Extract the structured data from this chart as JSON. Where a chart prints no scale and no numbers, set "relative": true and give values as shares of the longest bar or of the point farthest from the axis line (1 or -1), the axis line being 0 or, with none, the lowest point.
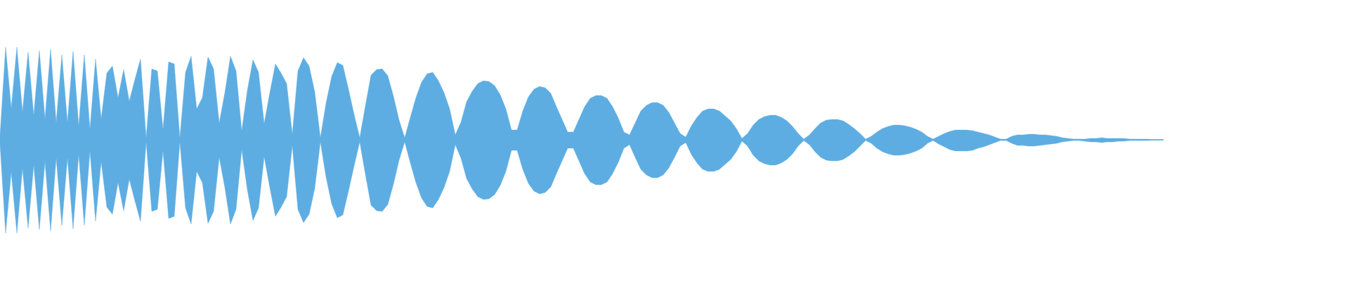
{
  "chart_data": {
    "type": "area",
    "relative": true,
    "categories": [
      null,
      null,
      null,
      null,
      null,
      null,
      null,
      null,
      null,
      null,
      null,
      null,
      null,
      null,
      null,
      null,
      null,
      null,
      null,
      null,
      null,
      null,
      null,
      null,
      null,
      null,
      null,
      null,
      null,
      null,
      null,
      null,
      null,
      null,
      null,
      null,
      null,
      null,
      null,
      null,
      null,
      null,
      null,
      null,
      null,
      null,
      null,
      null,
      null,
      null,
      null,
      null,
      null,
      null,
      null,
      null,
      null,
      null,
      null,
      null,
      null,
      null,
      null,
      null,
      null,
      null,
      null,
      null,
      null,
      null,
      null,
      null,
      null,
      null,
      null,
      null,
      null,
      null,
      null,
      null,
      null,
      null,
      null,
      null,
      null,
      null,
      null,
      null,
      null,
      null,
      null,
      null,
      null,
      null,
      null,
      null,
      null,
      null,
      null,
      null,
      null,
      null,
      null,
      null,
      null,
      null,
      null,
      null,
      null,
      null,
      null,
      null,
      null,
      null,
      null,
      null,
      null,
      null,
      null,
      null,
      null,
      null,
      null,
      null,
      null,
      null,
      null,
      null,
      null,
      null,
      null,
      null,
      null,
      null,
      null,
      null,
      null,
      null,
      null,
      null,
      null,
      null,
      null,
      null,
      null,
      null,
      null,
      null,
      null,
      null,
      null,
      null,
      null,
      null,
      null,
      null,
      null,
      null,
      null,
      null,
      null,
      null,
      null,
      null,
      null,
      null,
      null,
      null,
      null,
      null,
      null,
      null,
      null,
      null,
      null,
      null,
      null,
      null,
      null,
      null,
      null,
      null,
      null,
      null,
      null,
      null,
      null,
      null,
      null,
      null,
      null,
      null,
      null,
      null,
      null,
      null,
      null,
      null,
      null,
      null,
      null,
      null,
      null,
      null,
      null,
      null,
      null,
      null
    ],
    "series": [
      {
        "color": "#5dade2",
        "values": [
          0.045,
          0.992,
          0.338,
          0.992,
          0.301,
          0.94,
          0.263,
          0.955,
          0.226,
          0.97,
          0.188,
          0.91,
          0.188,
          0.947,
          0.15,
          0.91,
          0.113,
          0.865,
          0.226,
          0.714,
          0.789,
          0.451,
          0.752,
          0.414,
          0.647,
          0.865,
          0.023,
          0.759,
          0.737,
          0.113,
          0.835,
          0.812,
          0.023,
          0.722,
          0.895,
          0.331,
          0.451,
          0.887,
          0.759,
          0.18,
          0.504,
          0.895,
          0.737,
          0.098,
          0.526,
          0.857,
          0.722,
          0.173,
          0.504,
          0.812,
          0.714,
          0.602,
          0.06,
          0.737,
          0.88,
          0.789,
          0.511,
          0.023,
          0.391,
          0.677,
          0.827,
          0.797,
          0.541,
          0.271,
          0.023,
          0.361,
          0.692,
          0.752,
          0.759,
          0.684,
          0.466,
          0.211,
          0.023,
          0.241,
          0.451,
          0.617,
          0.707,
          0.722,
          0.632,
          0.504,
          0.331,
          0.053,
          0.188,
          0.406,
          0.519,
          0.602,
          0.632,
          0.624,
          0.579,
          0.481,
          0.331,
          0.105,
          0.105,
          0.308,
          0.459,
          0.541,
          0.571,
          0.556,
          0.496,
          0.353,
          0.218,
          0.083,
          0.083,
          0.218,
          0.353,
          0.444,
          0.474,
          0.474,
          0.444,
          0.353,
          0.233,
          0.083,
          0.053,
          0.18,
          0.308,
          0.368,
          0.398,
          0.398,
          0.368,
          0.293,
          0.18,
          0.068,
          0.03,
          0.15,
          0.241,
          0.308,
          0.331,
          0.331,
          0.308,
          0.256,
          0.203,
          0.12,
          0.015,
          0.068,
          0.158,
          0.218,
          0.248,
          0.263,
          0.263,
          0.241,
          0.203,
          0.143,
          0.068,
          0.008,
          0.053,
          0.12,
          0.18,
          0.211,
          0.218,
          0.218,
          0.203,
          0.165,
          0.12,
          0.068,
          0.008,
          0.038,
          0.083,
          0.12,
          0.143,
          0.158,
          0.158,
          0.15,
          0.135,
          0.113,
          0.083,
          0.038,
          0.008,
          0.038,
          0.068,
          0.09,
          0.105,
          0.105,
          0.105,
          0.098,
          0.083,
          0.068,
          0.053,
          0.03,
          0.008,
          0.008,
          0.038,
          0.053,
          0.053,
          0.06,
          0.06,
          0.053,
          0.053,
          0.045,
          0.038,
          0.023,
          0.015,
          0.008,
          0.008,
          0.008,
          0.015,
          0.015,
          0.023,
          0.015,
          0.015,
          0.015,
          0.015,
          0.008,
          0.008,
          0.008,
          0.008,
          0.004,
          0.004,
          0.004
        ]
      },
      {
        "color": "#5dade2",
        "values": [
          -0.045,
          -1,
          -0.346,
          -1,
          -0.308,
          -0.947,
          -0.271,
          -0.962,
          -0.233,
          -0.977,
          -0.195,
          -0.917,
          -0.195,
          -0.955,
          -0.158,
          -0.917,
          -0.12,
          -0.872,
          -0.233,
          -0.722,
          -0.797,
          -0.459,
          -0.759,
          -0.421,
          -0.654,
          -0.872,
          -0.023,
          -0.767,
          -0.744,
          -0.12,
          -0.842,
          -0.82,
          -0.023,
          -0.729,
          -0.902,
          -0.338,
          -0.459,
          -0.895,
          -0.767,
          -0.188,
          -0.511,
          -0.902,
          -0.744,
          -0.105,
          -0.534,
          -0.865,
          -0.729,
          -0.18,
          -0.511,
          -0.82,
          -0.722,
          -0.609,
          -0.06,
          -0.744,
          -0.887,
          -0.797,
          -0.519,
          -0.023,
          -0.398,
          -0.684,
          -0.835,
          -0.805,
          -0.549,
          -0.278,
          -0.023,
          -0.368,
          -0.699,
          -0.759,
          -0.767,
          -0.692,
          -0.474,
          -0.218,
          -0.023,
          -0.248,
          -0.459,
          -0.624,
          -0.714,
          -0.729,
          -0.639,
          -0.511,
          -0.338,
          -0.053,
          -0.195,
          -0.414,
          -0.526,
          -0.609,
          -0.639,
          -0.632,
          -0.586,
          -0.489,
          -0.338,
          -0.113,
          -0.113,
          -0.316,
          -0.466,
          -0.549,
          -0.579,
          -0.564,
          -0.504,
          -0.361,
          -0.226,
          -0.09,
          -0.09,
          -0.226,
          -0.361,
          -0.451,
          -0.481,
          -0.481,
          -0.451,
          -0.361,
          -0.241,
          -0.09,
          -0.053,
          -0.188,
          -0.316,
          -0.376,
          -0.406,
          -0.406,
          -0.376,
          -0.301,
          -0.188,
          -0.068,
          -0.03,
          -0.158,
          -0.248,
          -0.316,
          -0.338,
          -0.338,
          -0.316,
          -0.263,
          -0.211,
          -0.128,
          -0.015,
          -0.068,
          -0.165,
          -0.226,
          -0.256,
          -0.271,
          -0.271,
          -0.248,
          -0.211,
          -0.15,
          -0.068,
          -0.008,
          -0.053,
          -0.128,
          -0.188,
          -0.218,
          -0.226,
          -0.226,
          -0.211,
          -0.173,
          -0.128,
          -0.068,
          -0.008,
          -0.038,
          -0.09,
          -0.128,
          -0.15,
          -0.165,
          -0.165,
          -0.158,
          -0.143,
          -0.12,
          -0.09,
          -0.038,
          -0.008,
          -0.045,
          -0.075,
          -0.105,
          -0.12,
          -0.12,
          -0.12,
          -0.113,
          -0.09,
          -0.075,
          -0.053,
          -0.03,
          -0.008,
          -0.008,
          -0.038,
          -0.06,
          -0.06,
          -0.068,
          -0.068,
          -0.06,
          -0.053,
          -0.045,
          -0.038,
          -0.023,
          -0.015,
          -0.008,
          -0.008,
          -0.015,
          -0.023,
          -0.023,
          -0.03,
          -0.023,
          -0.023,
          -0.015,
          -0.015,
          -0.008,
          -0.008,
          -0.008,
          -0.008,
          -0.004,
          -0.004,
          -0.004
        ]
      }
    ]
  }
}
